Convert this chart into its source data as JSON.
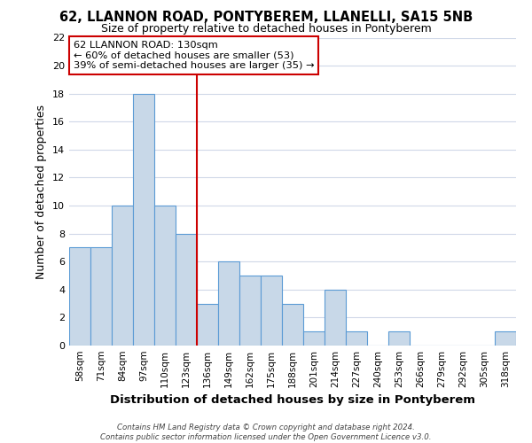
{
  "title": "62, LLANNON ROAD, PONTYBEREM, LLANELLI, SA15 5NB",
  "subtitle": "Size of property relative to detached houses in Pontyberem",
  "xlabel": "Distribution of detached houses by size in Pontyberem",
  "ylabel": "Number of detached properties",
  "bin_labels": [
    "58sqm",
    "71sqm",
    "84sqm",
    "97sqm",
    "110sqm",
    "123sqm",
    "136sqm",
    "149sqm",
    "162sqm",
    "175sqm",
    "188sqm",
    "201sqm",
    "214sqm",
    "227sqm",
    "240sqm",
    "253sqm",
    "266sqm",
    "279sqm",
    "292sqm",
    "305sqm",
    "318sqm"
  ],
  "bar_heights": [
    7,
    7,
    10,
    18,
    10,
    8,
    3,
    6,
    5,
    5,
    3,
    1,
    4,
    1,
    0,
    1,
    0,
    0,
    0,
    0,
    1
  ],
  "bar_color": "#c8d8e8",
  "bar_edge_color": "#5b9bd5",
  "vline_x_index": 5.5,
  "vline_color": "#cc0000",
  "ylim": [
    0,
    22
  ],
  "yticks": [
    0,
    2,
    4,
    6,
    8,
    10,
    12,
    14,
    16,
    18,
    20,
    22
  ],
  "annotation_title": "62 LLANNON ROAD: 130sqm",
  "annotation_line1": "← 60% of detached houses are smaller (53)",
  "annotation_line2": "39% of semi-detached houses are larger (35) →",
  "annotation_box_color": "#ffffff",
  "annotation_box_edge": "#cc0000",
  "footer_line1": "Contains HM Land Registry data © Crown copyright and database right 2024.",
  "footer_line2": "Contains public sector information licensed under the Open Government Licence v3.0.",
  "background_color": "#ffffff",
  "grid_color": "#d0d8e8"
}
